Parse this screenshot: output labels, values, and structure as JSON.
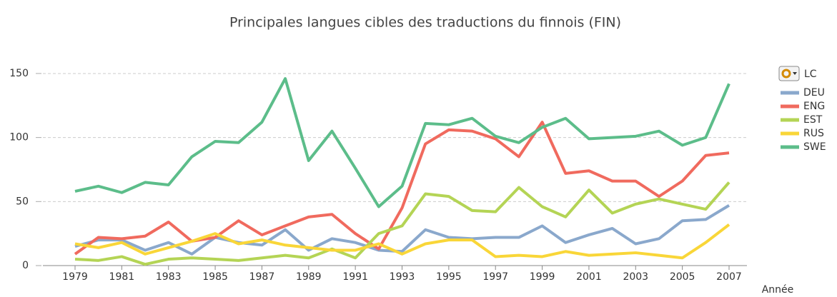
{
  "chart_data": {
    "type": "line",
    "title": "Principales langues cibles des traductions du finnois (FIN)",
    "x_label": "Année",
    "legend_title": "LC",
    "x": [
      1979,
      1980,
      1981,
      1982,
      1983,
      1984,
      1985,
      1986,
      1987,
      1988,
      1989,
      1990,
      1991,
      1992,
      1993,
      1994,
      1995,
      1996,
      1997,
      1998,
      1999,
      2000,
      2001,
      2002,
      2003,
      2004,
      2005,
      2006,
      2007
    ],
    "xlim": [
      1979,
      2007
    ],
    "xticks": [
      1979,
      1981,
      1983,
      1985,
      1987,
      1989,
      1991,
      1993,
      1995,
      1997,
      1999,
      2001,
      2003,
      2005,
      2007
    ],
    "ylim": [
      0,
      160
    ],
    "yticks": [
      0,
      50,
      100,
      150
    ],
    "grid": true,
    "legend": "right",
    "series": [
      {
        "name": "DEU",
        "color": "#8aa8cc",
        "values": [
          15,
          20,
          20,
          12,
          18,
          9,
          22,
          18,
          16,
          28,
          12,
          21,
          18,
          12,
          11,
          28,
          22,
          21,
          22,
          22,
          31,
          18,
          24,
          29,
          17,
          21,
          35,
          36,
          47
        ]
      },
      {
        "name": "ENG",
        "color": "#f06a5e",
        "values": [
          9,
          22,
          21,
          23,
          34,
          19,
          22,
          35,
          24,
          31,
          38,
          40,
          25,
          13,
          45,
          95,
          106,
          105,
          99,
          85,
          112,
          72,
          74,
          66,
          66,
          54,
          66,
          86,
          88
        ]
      },
      {
        "name": "EST",
        "color": "#b4d455",
        "values": [
          5,
          4,
          7,
          1,
          5,
          6,
          5,
          4,
          6,
          8,
          6,
          13,
          6,
          25,
          31,
          56,
          54,
          43,
          42,
          61,
          46,
          38,
          59,
          41,
          48,
          52,
          48,
          44,
          65
        ]
      },
      {
        "name": "RUS",
        "color": "#f9d638",
        "values": [
          17,
          14,
          18,
          9,
          14,
          19,
          25,
          17,
          20,
          16,
          14,
          12,
          12,
          17,
          9,
          17,
          20,
          20,
          7,
          8,
          7,
          11,
          8,
          9,
          10,
          8,
          6,
          18,
          32
        ]
      },
      {
        "name": "SWE",
        "color": "#5cbd8a",
        "values": [
          58,
          62,
          57,
          65,
          63,
          85,
          97,
          96,
          112,
          146,
          82,
          105,
          76,
          46,
          62,
          111,
          110,
          115,
          101,
          96,
          108,
          115,
          99,
          100,
          101,
          105,
          94,
          100,
          142
        ]
      }
    ]
  }
}
